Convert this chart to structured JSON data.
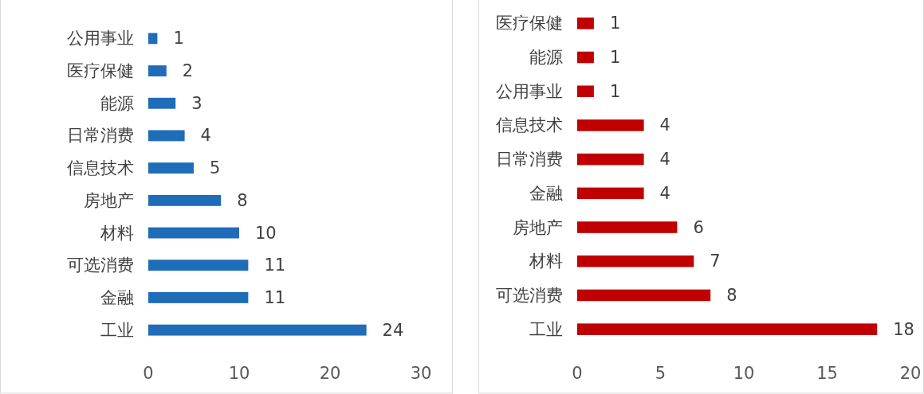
{
  "chart_data": [
    {
      "type": "bar",
      "orientation": "horizontal",
      "categories": [
        "公用事业",
        "医疗保健",
        "能源",
        "日常消费",
        "信息技术",
        "房地产",
        "材料",
        "可选消费",
        "金融",
        "工业"
      ],
      "values": [
        1,
        2,
        3,
        4,
        5,
        8,
        10,
        11,
        11,
        24
      ],
      "color": "#1f6cb8",
      "xlim": [
        0,
        30
      ],
      "xticks": [
        0,
        10,
        20,
        30
      ],
      "data_labels": true,
      "grid": false
    },
    {
      "type": "bar",
      "orientation": "horizontal",
      "categories": [
        "医疗保健",
        "能源",
        "公用事业",
        "信息技术",
        "日常消费",
        "金融",
        "房地产",
        "材料",
        "可选消费",
        "工业"
      ],
      "values": [
        1,
        1,
        1,
        4,
        4,
        4,
        6,
        7,
        8,
        18
      ],
      "color": "#c00000",
      "xlim": [
        0,
        20
      ],
      "xticks": [
        0,
        5,
        10,
        15,
        20
      ],
      "data_labels": true,
      "grid": false
    }
  ]
}
